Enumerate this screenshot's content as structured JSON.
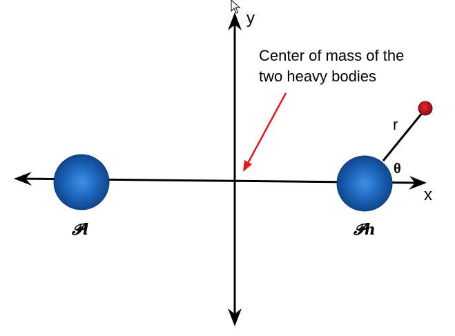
{
  "labels": {
    "y_axis": "y",
    "x_axis": "x",
    "annotation_line1": "Center of mass of the",
    "annotation_line2": "two heavy bodies",
    "radius": "r",
    "angle": "θ",
    "left_body": "𝓟l",
    "right_body": "𝓟h"
  },
  "icons": {
    "cursor": "arrow-cursor-icon"
  },
  "colors": {
    "axes": "#000000",
    "annotation_arrow": "#e8141c",
    "heavy_body_center": "#3f8fe8",
    "heavy_body_edge": "#0d3f7e",
    "test_particle": "#c8171d",
    "test_particle_edge": "#5a0508"
  }
}
